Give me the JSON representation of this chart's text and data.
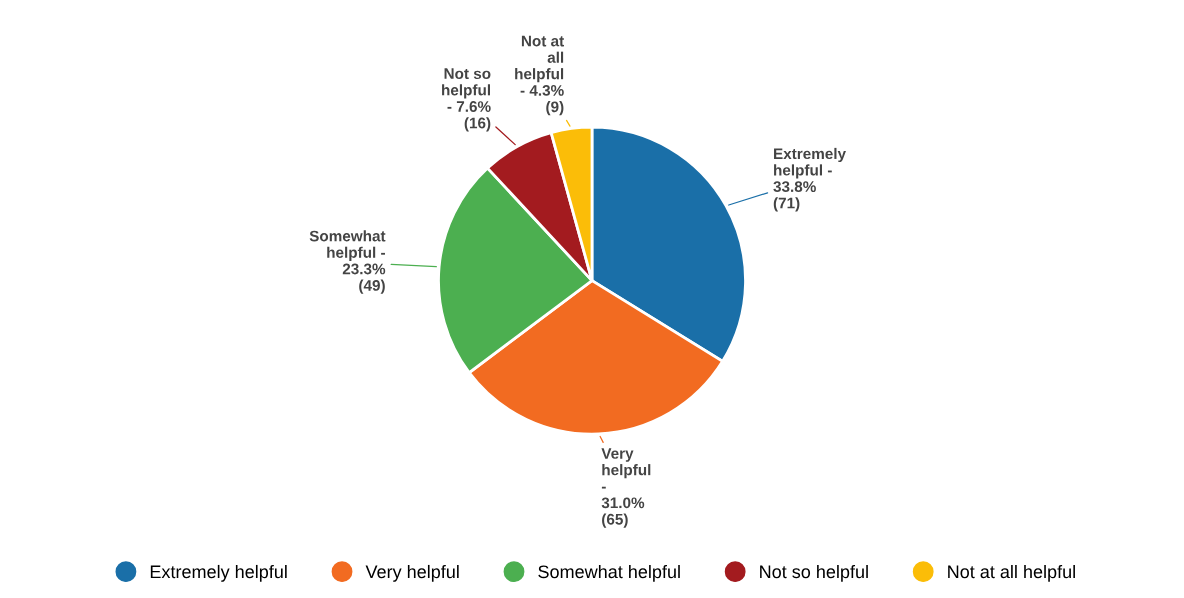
{
  "chart_data": {
    "type": "pie",
    "categories": [
      "Extremely helpful",
      "Very helpful",
      "Somewhat helpful",
      "Not so helpful",
      "Not at all helpful"
    ],
    "values": [
      71,
      65,
      49,
      16,
      9
    ],
    "value_labels": [
      "Extremely\nhelpful -\n33.8%\n(71)",
      "Very\nhelpful\n-\n31.0%\n(65)",
      "Somewhat\nhelpful -\n23.3%\n(49)",
      "Not so\nhelpful\n- 7.6%\n(16)",
      "Not at\nall\nhelpful\n- 4.3%\n(9)"
    ],
    "colors": [
      "#1a6fa8",
      "#f26b21",
      "#4caf50",
      "#a31b1f",
      "#fbbd08"
    ],
    "legend": "bottom"
  }
}
